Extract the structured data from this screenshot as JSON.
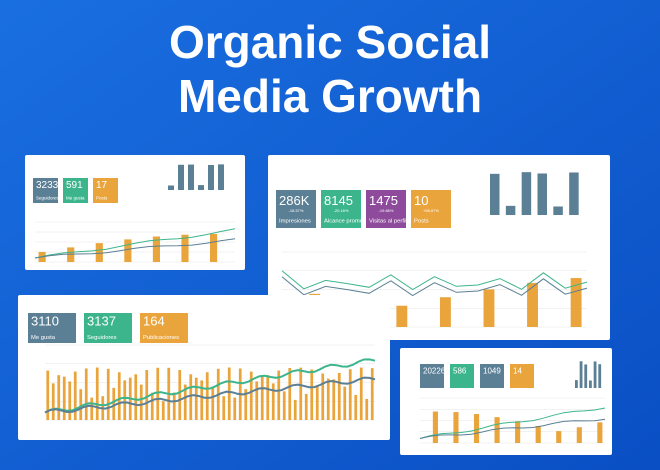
{
  "header": {
    "title_lines": [
      "Organic Social",
      "Media Growth"
    ]
  },
  "cards": [
    {
      "tiles": [
        {
          "value": "3233",
          "label": "Seguidores"
        },
        {
          "value": "591",
          "label": "Me gusta"
        },
        {
          "value": "17",
          "label": "Posts"
        }
      ]
    },
    {
      "tiles": [
        {
          "value": "286K",
          "change": "-18.57%",
          "label": "Impresiones"
        },
        {
          "value": "8145",
          "change": "-20.16%",
          "label": "Alcance promedio por día"
        },
        {
          "value": "1475",
          "change": "-19.86%",
          "label": "Visitas al perfil"
        },
        {
          "value": "10",
          "change": "+66.67%",
          "label": "Posts"
        }
      ]
    },
    {
      "tiles": [
        {
          "value": "3110",
          "label": "Me gusta"
        },
        {
          "value": "3137",
          "label": "Seguidores"
        },
        {
          "value": "164",
          "label": "Publicaciones"
        }
      ]
    },
    {
      "tiles": [
        {
          "value": "20226"
        },
        {
          "value": "586"
        },
        {
          "value": "1049"
        },
        {
          "value": "14"
        }
      ]
    }
  ]
}
